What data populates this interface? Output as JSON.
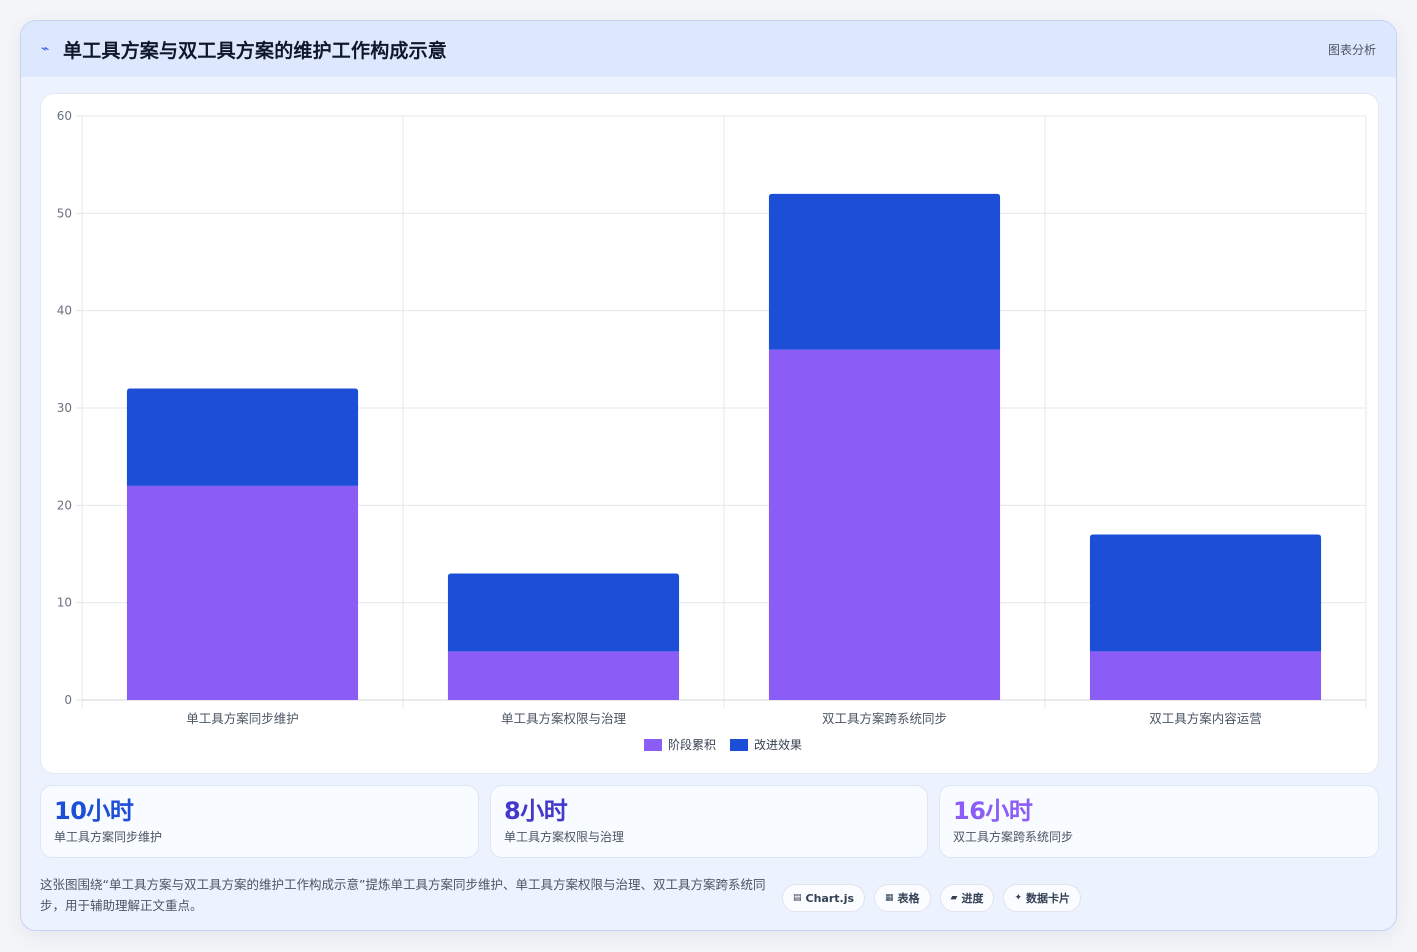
{
  "header": {
    "title": "单工具方案与双工具方案的维护工作构成示意",
    "title_icon": "chart-line-icon",
    "tag": "图表分析"
  },
  "chart_data": {
    "type": "bar",
    "stacked": true,
    "categories": [
      "单工具方案同步维护",
      "单工具方案权限与治理",
      "双工具方案跨系统同步",
      "双工具方案内容运营"
    ],
    "series": [
      {
        "name": "阶段累积",
        "values": [
          22,
          5,
          36,
          5
        ],
        "color": "#8b5cf6"
      },
      {
        "name": "改进效果",
        "values": [
          10,
          8,
          16,
          12
        ],
        "color": "#1d4ed8"
      }
    ],
    "ylim": [
      0,
      60
    ],
    "yticks": [
      0,
      10,
      20,
      30,
      40,
      50,
      60
    ],
    "grid": true,
    "legend_position": "bottom"
  },
  "stats": [
    {
      "value": "10小时",
      "label": "单工具方案同步维护",
      "color": "#1d4ed8"
    },
    {
      "value": "8小时",
      "label": "单工具方案权限与治理",
      "color": "#4338ca"
    },
    {
      "value": "16小时",
      "label": "双工具方案跨系统同步",
      "color": "#8b5cf6"
    }
  ],
  "footer": {
    "description": "这张图围绕“单工具方案与双工具方案的维护工作构成示意”提炼单工具方案同步维护、单工具方案权限与治理、双工具方案跨系统同步，用于辅助理解正文重点。",
    "chips": [
      {
        "icon": "▤",
        "label": "Chart.js"
      },
      {
        "icon": "▦",
        "label": "表格"
      },
      {
        "icon": "▰",
        "label": "进度"
      },
      {
        "icon": "✦",
        "label": "数据卡片"
      }
    ]
  }
}
